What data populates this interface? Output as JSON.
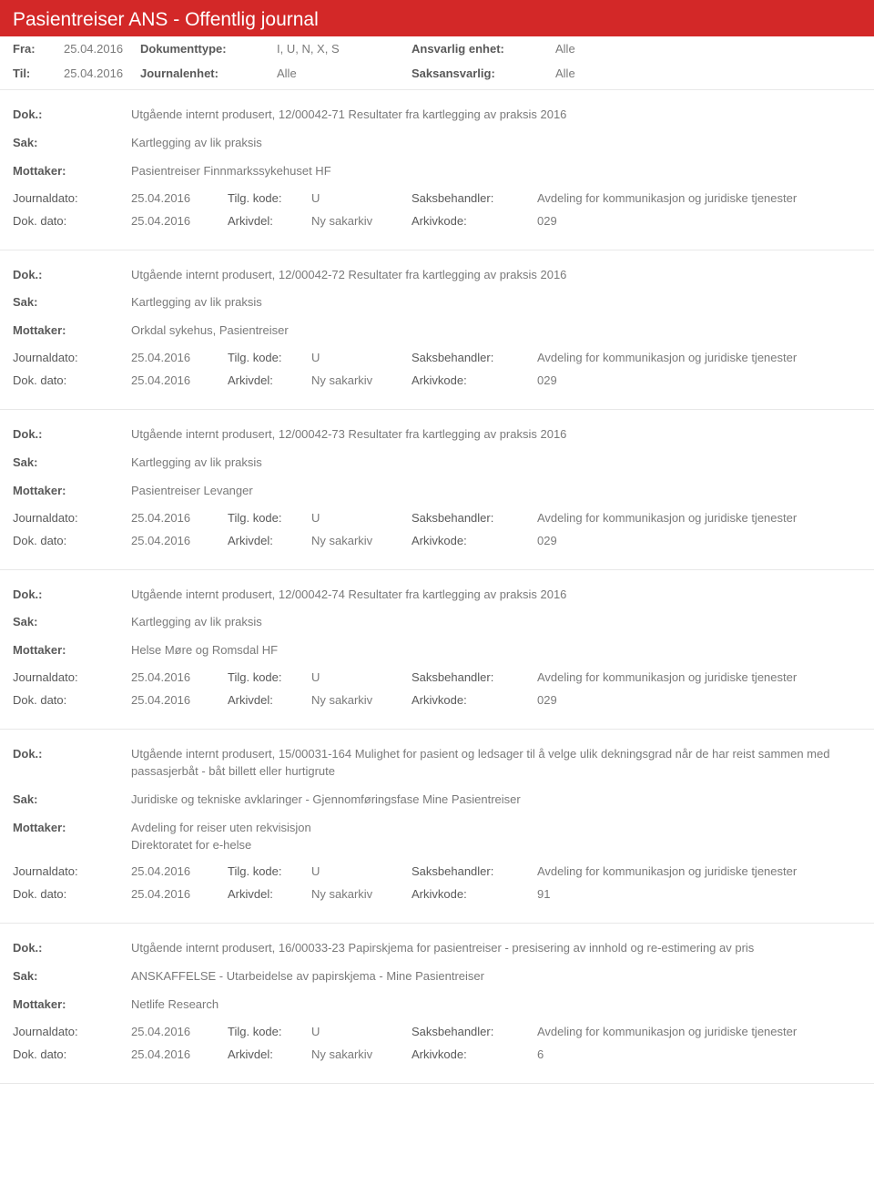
{
  "header_title": "Pasientreiser ANS - Offentlig journal",
  "filter": {
    "fra_label": "Fra:",
    "fra_value": "25.04.2016",
    "til_label": "Til:",
    "til_value": "25.04.2016",
    "doktype_label": "Dokumenttype:",
    "doktype_value": "I, U, N, X, S",
    "journalenhet_label": "Journalenhet:",
    "journalenhet_value": "Alle",
    "ansvarlig_label": "Ansvarlig enhet:",
    "ansvarlig_value": "Alle",
    "saksansvarlig_label": "Saksansvarlig:",
    "saksansvarlig_value": "Alle"
  },
  "labels": {
    "dok": "Dok.:",
    "sak": "Sak:",
    "mottaker": "Mottaker:",
    "journaldato": "Journaldato:",
    "tilgkode": "Tilg. kode:",
    "saksbehandler": "Saksbehandler:",
    "dokdato": "Dok. dato:",
    "arkivdel": "Arkivdel:",
    "arkivkode": "Arkivkode:"
  },
  "entries": [
    {
      "dok": "Utgående internt produsert, 12/00042-71 Resultater fra kartlegging av praksis 2016",
      "sak": "Kartlegging av lik praksis",
      "mottaker": "Pasientreiser Finnmarkssykehuset HF",
      "journaldato": "25.04.2016",
      "tilgkode": "U",
      "saksbehandler": "Avdeling for kommunikasjon og juridiske tjenester",
      "dokdato": "25.04.2016",
      "arkivdel": "Ny sakarkiv",
      "arkivkode": "029"
    },
    {
      "dok": "Utgående internt produsert, 12/00042-72 Resultater fra kartlegging av praksis 2016",
      "sak": "Kartlegging av lik praksis",
      "mottaker": "Orkdal sykehus, Pasientreiser",
      "journaldato": "25.04.2016",
      "tilgkode": "U",
      "saksbehandler": "Avdeling for kommunikasjon og juridiske tjenester",
      "dokdato": "25.04.2016",
      "arkivdel": "Ny sakarkiv",
      "arkivkode": "029"
    },
    {
      "dok": "Utgående internt produsert, 12/00042-73 Resultater fra kartlegging av praksis 2016",
      "sak": "Kartlegging av lik praksis",
      "mottaker": "Pasientreiser Levanger",
      "journaldato": "25.04.2016",
      "tilgkode": "U",
      "saksbehandler": "Avdeling for kommunikasjon og juridiske tjenester",
      "dokdato": "25.04.2016",
      "arkivdel": "Ny sakarkiv",
      "arkivkode": "029"
    },
    {
      "dok": "Utgående internt produsert, 12/00042-74 Resultater fra kartlegging av praksis 2016",
      "sak": "Kartlegging av lik praksis",
      "mottaker": "Helse Møre og Romsdal HF",
      "journaldato": "25.04.2016",
      "tilgkode": "U",
      "saksbehandler": "Avdeling for kommunikasjon og juridiske tjenester",
      "dokdato": "25.04.2016",
      "arkivdel": "Ny sakarkiv",
      "arkivkode": "029"
    },
    {
      "dok": "Utgående internt produsert, 15/00031-164 Mulighet for pasient og ledsager til å velge ulik dekningsgrad når de har reist sammen med passasjerbåt - båt billett eller hurtigrute",
      "sak": "Juridiske og tekniske avklaringer - Gjennomføringsfase Mine Pasientreiser",
      "mottaker": "Avdeling for reiser uten rekvisisjon\nDirektoratet for e-helse",
      "journaldato": "25.04.2016",
      "tilgkode": "U",
      "saksbehandler": "Avdeling for kommunikasjon og juridiske tjenester",
      "dokdato": "25.04.2016",
      "arkivdel": "Ny sakarkiv",
      "arkivkode": "91"
    },
    {
      "dok": "Utgående internt produsert, 16/00033-23 Papirskjema for pasientreiser - presisering av innhold og re-estimering av pris",
      "sak": "ANSKAFFELSE - Utarbeidelse av papirskjema - Mine Pasientreiser",
      "mottaker": "Netlife Research",
      "journaldato": "25.04.2016",
      "tilgkode": "U",
      "saksbehandler": "Avdeling for kommunikasjon og juridiske tjenester",
      "dokdato": "25.04.2016",
      "arkivdel": "Ny sakarkiv",
      "arkivkode": "6"
    }
  ]
}
